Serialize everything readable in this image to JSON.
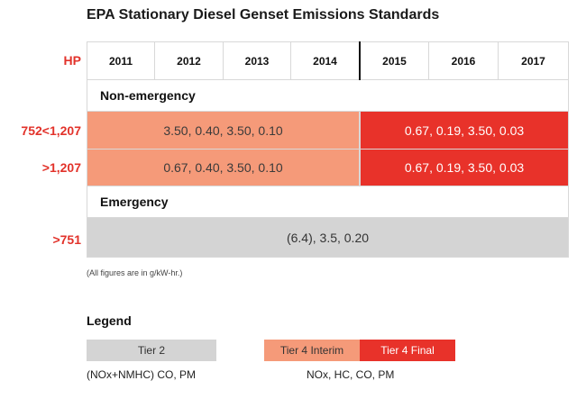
{
  "chart_data": {
    "type": "table",
    "title": "EPA Stationary Diesel Genset Emissions Standards",
    "row_header_label": "HP",
    "years": [
      "2011",
      "2012",
      "2013",
      "2014",
      "2015",
      "2016",
      "2017"
    ],
    "sections": [
      {
        "name": "Non-emergency",
        "rows": [
          {
            "hp": "752<1,207",
            "interim": "3.50, 0.40, 3.50, 0.10",
            "final": "0.67, 0.19, 3.50, 0.03"
          },
          {
            "hp": ">1,207",
            "interim": "0.67, 0.40, 3.50, 0.10",
            "final": "0.67, 0.19, 3.50, 0.03"
          }
        ]
      },
      {
        "name": "Emergency",
        "rows": [
          {
            "hp": ">751",
            "tier2": "(6.4), 3.5, 0.20"
          }
        ]
      }
    ],
    "note": "(All figures are in g/kW-hr.)",
    "legend": {
      "title": "Legend",
      "tier2": {
        "label": "Tier 2",
        "caption": "(NOx+NMHC) CO, PM",
        "color": "#d4d4d4"
      },
      "interim": {
        "label": "Tier 4 Interim",
        "color": "#f59a79"
      },
      "final": {
        "label": "Tier 4 Final",
        "color": "#e8322a"
      },
      "tier4_caption": "NOx, HC, CO, PM"
    }
  }
}
